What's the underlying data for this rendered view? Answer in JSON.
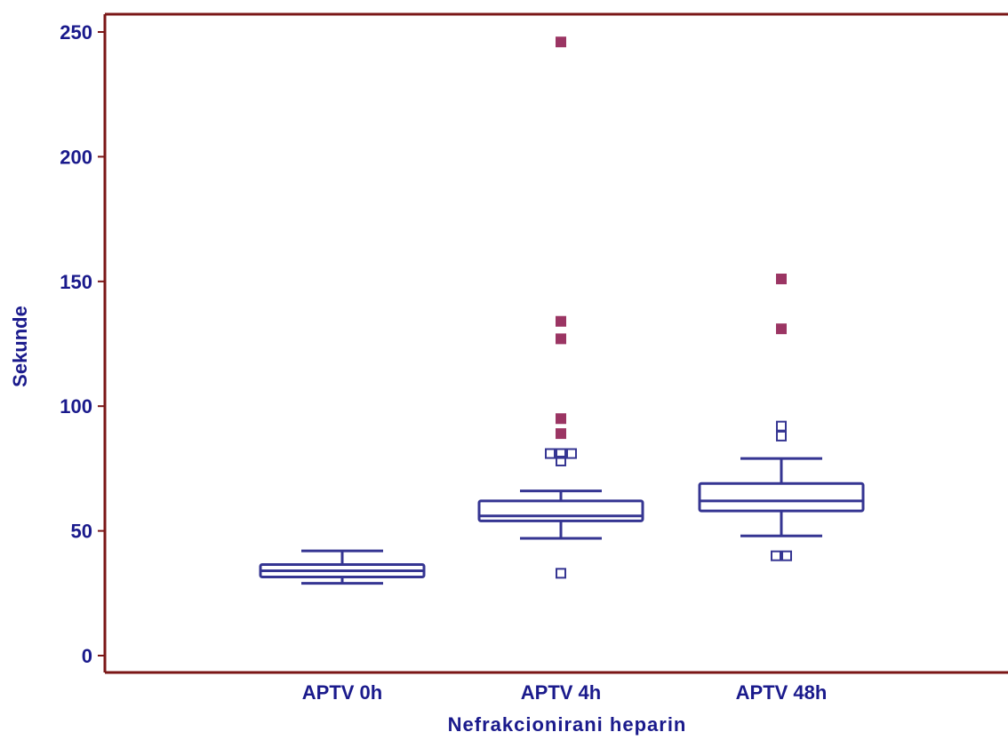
{
  "colors": {
    "frame": "#7a1616",
    "text": "#1a1a8c",
    "box": "#353592",
    "far_outlier": "#9b3563",
    "background": "#ffffff"
  },
  "chart_data": {
    "type": "box",
    "xlabel": "Nefrakcionirani heparin",
    "ylabel": "Sekunde",
    "ylim": [
      0,
      250
    ],
    "yticks": [
      0,
      50,
      100,
      150,
      200,
      250
    ],
    "ytick_labels": [
      "0",
      "50",
      "100",
      "150",
      "200",
      "250"
    ],
    "categories": [
      "APTV 0h",
      "APTV 4h",
      "APTV 48h"
    ],
    "boxes": [
      {
        "category": "APTV 0h",
        "whisker_low": 29,
        "q1": 31.5,
        "median": 34,
        "q3": 36.5,
        "whisker_high": 42,
        "outliers": [],
        "far_outliers": []
      },
      {
        "category": "APTV 4h",
        "whisker_low": 47,
        "q1": 54,
        "median": 56,
        "q3": 62,
        "whisker_high": 66,
        "outliers": [
          33,
          78,
          81,
          81,
          81
        ],
        "far_outliers": [
          89,
          95,
          127,
          134,
          246
        ]
      },
      {
        "category": "APTV 48h",
        "whisker_low": 48,
        "q1": 58,
        "median": 62,
        "q3": 69,
        "whisker_high": 79,
        "outliers": [
          40,
          40,
          88,
          92
        ],
        "far_outliers": [
          131,
          151
        ]
      }
    ],
    "grid": false,
    "legend": "none"
  }
}
